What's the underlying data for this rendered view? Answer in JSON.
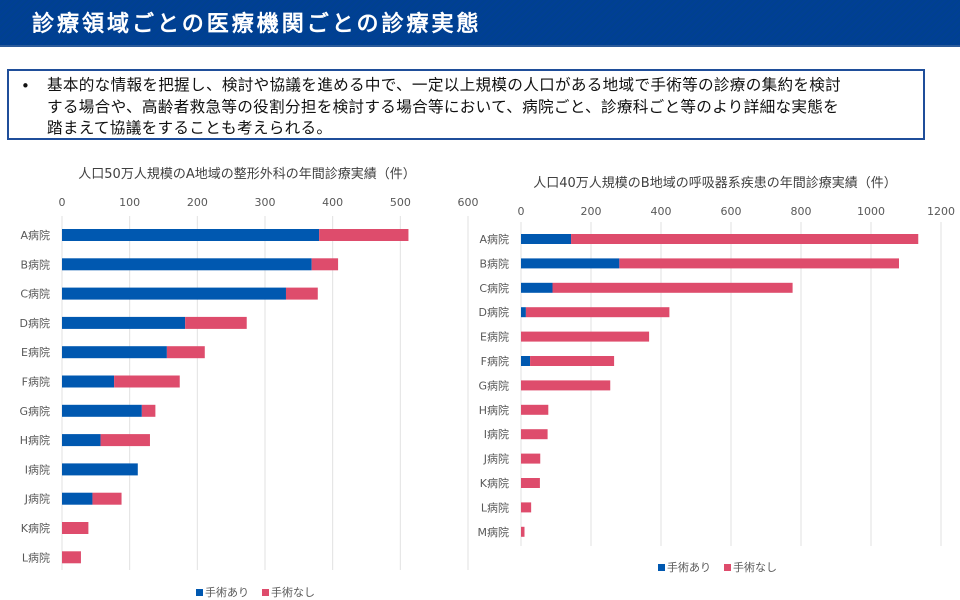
{
  "header": {
    "title": "診療領域ごとの医療機関ごとの診療実態"
  },
  "note": {
    "bullet": "•",
    "lines": [
      "基本的な情報を把握し、検討や協議を進める中で、一定以上規模の人口がある地域で手術等の診療の集約を検討",
      "する場合や、高齢者救急等の役割分担を検討する場合等において、病院ごと、診療科ごと等のより詳細な実態を",
      "踏まえて協議をすることも考えられる。"
    ]
  },
  "colors": {
    "surgery": "#0058b0",
    "no_surgery": "#de4c6c",
    "grid": "#e2e2e2"
  },
  "chart_data": [
    {
      "type": "bar",
      "orientation": "horizontal",
      "stacked": true,
      "title": "人口50万人規模のA地域の整形外科の年間診療実績（件）",
      "categories": [
        "A病院",
        "B病院",
        "C病院",
        "D病院",
        "E病院",
        "F病院",
        "G病院",
        "H病院",
        "I病院",
        "J病院",
        "K病院",
        "L病院"
      ],
      "series": [
        {
          "name": "手術あり",
          "values": [
            380,
            369,
            331,
            182,
            155,
            77,
            118,
            57,
            112,
            45,
            0,
            0
          ]
        },
        {
          "name": "手術なし",
          "values": [
            132,
            39,
            47,
            91,
            56,
            97,
            20,
            73,
            0,
            43,
            39,
            28
          ]
        }
      ],
      "xlim": [
        0,
        600
      ],
      "xticks": [
        "0",
        "100",
        "200",
        "300",
        "400",
        "500",
        "600"
      ],
      "xtick_values": [
        0,
        100,
        200,
        300,
        400,
        500,
        600
      ],
      "axis_position": "top",
      "grid": true,
      "legend": "bottom"
    },
    {
      "type": "bar",
      "orientation": "horizontal",
      "stacked": true,
      "title": "人口40万人規模のB地域の呼吸器系疾患の年間診療実績（件）",
      "categories": [
        "A病院",
        "B病院",
        "C病院",
        "D病院",
        "E病院",
        "F病院",
        "G病院",
        "H病院",
        "I病院",
        "J病院",
        "K病院",
        "L病院",
        "M病院"
      ],
      "series": [
        {
          "name": "手術あり",
          "values": [
            143,
            281,
            90,
            14,
            0,
            26,
            0,
            0,
            0,
            0,
            0,
            0,
            0
          ]
        },
        {
          "name": "手術なし",
          "values": [
            992,
            799,
            686,
            410,
            366,
            240,
            255,
            78,
            76,
            55,
            54,
            29,
            10
          ]
        }
      ],
      "xlim": [
        0,
        1200
      ],
      "xticks": [
        "0",
        "200",
        "400",
        "600",
        "800",
        "1000",
        "1200"
      ],
      "xtick_values": [
        0,
        200,
        400,
        600,
        800,
        1000,
        1200
      ],
      "axis_position": "top",
      "grid": true,
      "legend": "bottom"
    }
  ]
}
